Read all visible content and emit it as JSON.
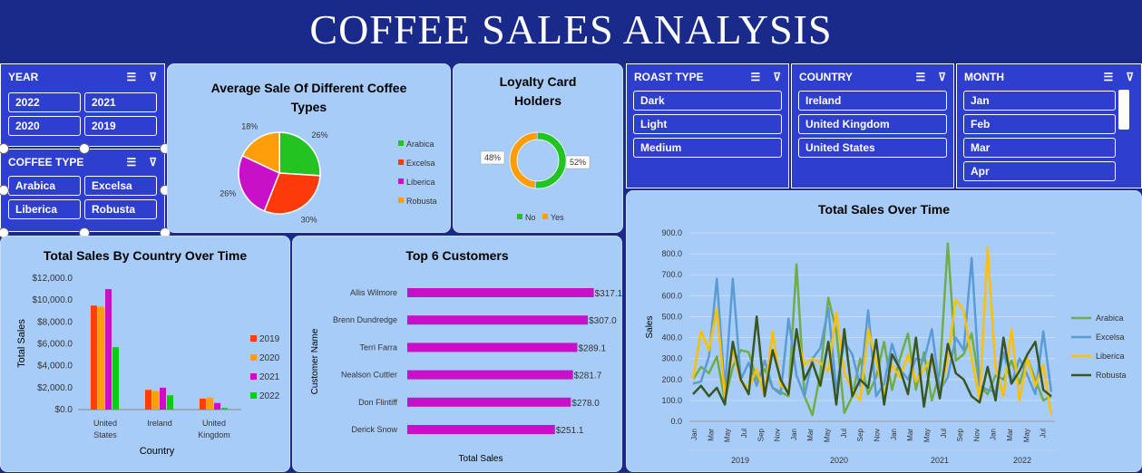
{
  "header": {
    "title": "COFFEE SALES ANALYSIS"
  },
  "slicers": {
    "year": {
      "title": "YEAR",
      "items": [
        "2022",
        "2021",
        "2020",
        "2019"
      ]
    },
    "coffee_type": {
      "title": "COFFEE TYPE",
      "items": [
        "Arabica",
        "Excelsa",
        "Liberica",
        "Robusta"
      ]
    },
    "roast_type": {
      "title": "ROAST TYPE",
      "items": [
        "Dark",
        "Light",
        "Medium"
      ]
    },
    "country": {
      "title": "COUNTRY",
      "items": [
        "Ireland",
        "United Kingdom",
        "United States"
      ]
    },
    "month": {
      "title": "MONTH",
      "items": [
        "Jan",
        "Feb",
        "Mar",
        "Apr"
      ]
    }
  },
  "chart_data": [
    {
      "type": "pie",
      "title": "Average Sale Of Different Coffee Types",
      "categories": [
        "Arabica",
        "Excelsa",
        "Liberica",
        "Robusta"
      ],
      "values": [
        26,
        30,
        26,
        18
      ],
      "labels": [
        "26%",
        "30%",
        "26%",
        "18%"
      ],
      "colors": [
        "#22c422",
        "#ff3a0a",
        "#c910c9",
        "#ff9e0a"
      ],
      "legend": "right"
    },
    {
      "type": "pie",
      "title": "Loyalty Card Holders",
      "categories": [
        "No",
        "Yes"
      ],
      "values": [
        52,
        48
      ],
      "labels": [
        "52%",
        "48%"
      ],
      "colors": [
        "#22c422",
        "#ff9e0a"
      ],
      "legend": "bottom"
    },
    {
      "type": "bar",
      "title": "Total Sales By Country Over Time",
      "xlabel": "Country",
      "ylabel": "Total Sales",
      "categories": [
        "United States",
        "Ireland",
        "United Kingdom"
      ],
      "category_lines": [
        [
          "United",
          "States"
        ],
        [
          "Ireland"
        ],
        [
          "United",
          "Kingdom"
        ]
      ],
      "series": [
        {
          "name": "2019",
          "values": [
            9500,
            1800,
            1000
          ],
          "color": "#ff4000"
        },
        {
          "name": "2020",
          "values": [
            9400,
            1700,
            1100
          ],
          "color": "#ff9e0a"
        },
        {
          "name": "2021",
          "values": [
            11000,
            2000,
            600
          ],
          "color": "#c910c9"
        },
        {
          "name": "2022",
          "values": [
            5700,
            1300,
            150
          ],
          "color": "#10cc10"
        }
      ],
      "ylim": [
        0,
        12000
      ],
      "yticks": [
        "$0.0",
        "$2,000.0",
        "$4,000.0",
        "$6,000.0",
        "$8,000.0",
        "$10,000.0",
        "$12,000.0"
      ],
      "legend": "right"
    },
    {
      "type": "bar",
      "orientation": "horizontal",
      "title": "Top 6 Customers",
      "xlabel": "Total Sales",
      "ylabel": "Customer Name",
      "categories": [
        "Allis Wilmore",
        "Brenn Dundredge",
        "Terri Farra",
        "Nealson Cuttler",
        "Don Flintiff",
        "Derick Snow"
      ],
      "values": [
        317.1,
        307.0,
        289.1,
        281.7,
        278.0,
        251.1
      ],
      "labels": [
        "$317.1",
        "$307.0",
        "$289.1",
        "$281.7",
        "$278.0",
        "$251.1"
      ],
      "xlim": [
        0,
        330
      ],
      "color": "#c910c9"
    },
    {
      "type": "line",
      "title": "Total Sales Over Time",
      "ylabel": "Sales",
      "ylim": [
        0,
        900
      ],
      "yticks": [
        "0.0",
        "100.0",
        "200.0",
        "300.0",
        "400.0",
        "500.0",
        "600.0",
        "700.0",
        "800.0",
        "900.0"
      ],
      "x_tick_labels": [
        "Jan",
        "Mar",
        "May",
        "Jul",
        "Sep",
        "Nov",
        "Jan",
        "Mar",
        "May",
        "Jul",
        "Sep",
        "Nov",
        "Jan",
        "Mar",
        "May",
        "Jul",
        "Sep",
        "Nov",
        "Jan",
        "Mar",
        "May",
        "Jul"
      ],
      "years": [
        "2019",
        "2020",
        "2021",
        "2022"
      ],
      "series": [
        {
          "name": "Arabica",
          "color": "#70ad47",
          "values": [
            200,
            260,
            230,
            310,
            100,
            260,
            340,
            330,
            200,
            250,
            160,
            140,
            120,
            750,
            120,
            30,
            230,
            590,
            430,
            40,
            120,
            300,
            130,
            210,
            380,
            150,
            300,
            420,
            150,
            330,
            100,
            230,
            850,
            290,
            320,
            420,
            170,
            130,
            220,
            200,
            290,
            180,
            300,
            200,
            100,
            120
          ]
        },
        {
          "name": "Excelsa",
          "color": "#5b9bd5",
          "values": [
            180,
            190,
            310,
            680,
            150,
            680,
            200,
            280,
            170,
            290,
            160,
            130,
            490,
            220,
            120,
            300,
            350,
            540,
            150,
            380,
            320,
            170,
            530,
            120,
            180,
            370,
            250,
            200,
            300,
            290,
            440,
            150,
            210,
            400,
            340,
            780,
            170,
            150,
            140,
            330,
            180,
            300,
            220,
            130,
            430,
            140
          ]
        },
        {
          "name": "Liberica",
          "color": "#ffc000",
          "values": [
            200,
            430,
            340,
            540,
            120,
            340,
            190,
            160,
            250,
            120,
            430,
            170,
            150,
            420,
            270,
            300,
            280,
            240,
            520,
            230,
            150,
            100,
            440,
            290,
            130,
            270,
            210,
            320,
            190,
            250,
            300,
            120,
            300,
            580,
            530,
            300,
            100,
            830,
            250,
            120,
            440,
            100,
            300,
            170,
            270,
            30
          ]
        },
        {
          "name": "Robusta",
          "color": "#375623",
          "values": [
            130,
            170,
            120,
            160,
            80,
            380,
            200,
            130,
            500,
            120,
            340,
            200,
            130,
            440,
            200,
            280,
            170,
            380,
            80,
            440,
            120,
            200,
            160,
            390,
            80,
            320,
            250,
            130,
            400,
            70,
            320,
            110,
            370,
            230,
            200,
            120,
            90,
            260,
            100,
            400,
            180,
            240,
            320,
            380,
            150,
            120
          ]
        }
      ],
      "legend": "right"
    }
  ]
}
